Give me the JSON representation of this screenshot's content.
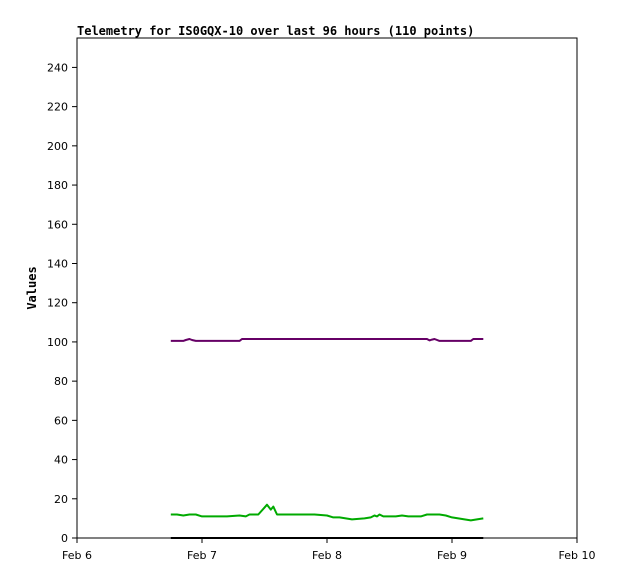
{
  "chart_data": {
    "type": "line",
    "title": "Telemetry for IS0GQX-10 over last 96 hours (110 points)",
    "xlabel": "",
    "ylabel": "Values",
    "x_ticks": [
      "Feb 6",
      "Feb 7",
      "Feb 8",
      "Feb 9",
      "Feb 10"
    ],
    "xlim": [
      0,
      4
    ],
    "ylim": [
      0,
      255
    ],
    "y_ticks": [
      0,
      20,
      40,
      60,
      80,
      100,
      120,
      140,
      160,
      180,
      200,
      220,
      240
    ],
    "grid": false,
    "legend": "none",
    "series": [
      {
        "color": "#660066",
        "x": [
          0.75,
          0.85,
          0.87,
          0.9,
          0.92,
          0.95,
          1.0,
          1.1,
          1.2,
          1.3,
          1.32,
          1.5,
          1.7,
          1.9,
          2.1,
          2.3,
          2.5,
          2.7,
          2.8,
          2.82,
          2.84,
          2.86,
          2.9,
          3.0,
          3.15,
          3.17,
          3.25
        ],
        "values": [
          100.5,
          100.5,
          101,
          101.5,
          101,
          100.5,
          100.5,
          100.5,
          100.5,
          100.5,
          101.5,
          101.5,
          101.5,
          101.5,
          101.5,
          101.5,
          101.5,
          101.5,
          101.5,
          100.8,
          101.2,
          101.5,
          100.5,
          100.5,
          100.5,
          101.5,
          101.5
        ]
      },
      {
        "color": "#00aa00",
        "x": [
          0.75,
          0.8,
          0.85,
          0.9,
          0.95,
          1.0,
          1.1,
          1.2,
          1.3,
          1.35,
          1.38,
          1.4,
          1.45,
          1.5,
          1.52,
          1.55,
          1.57,
          1.6,
          1.7,
          1.8,
          1.9,
          2.0,
          2.05,
          2.1,
          2.2,
          2.3,
          2.35,
          2.38,
          2.4,
          2.42,
          2.45,
          2.5,
          2.55,
          2.6,
          2.65,
          2.7,
          2.75,
          2.8,
          2.85,
          2.9,
          2.95,
          3.0,
          3.05,
          3.1,
          3.15,
          3.2,
          3.25
        ],
        "values": [
          12,
          12,
          11.5,
          12,
          12,
          11,
          11,
          11,
          11.5,
          11,
          12,
          12,
          12,
          15.5,
          17,
          14.5,
          16,
          12,
          12,
          12,
          12,
          11.5,
          10.5,
          10.5,
          9.5,
          10,
          10.5,
          11.5,
          11,
          12,
          11,
          11,
          11,
          11.5,
          11,
          11,
          11,
          12,
          12,
          12,
          11.5,
          10.5,
          10,
          9.5,
          9,
          9.5,
          10
        ]
      },
      {
        "color": "#000000",
        "x": [
          0.75,
          3.25
        ],
        "values": [
          0,
          0
        ]
      }
    ]
  }
}
